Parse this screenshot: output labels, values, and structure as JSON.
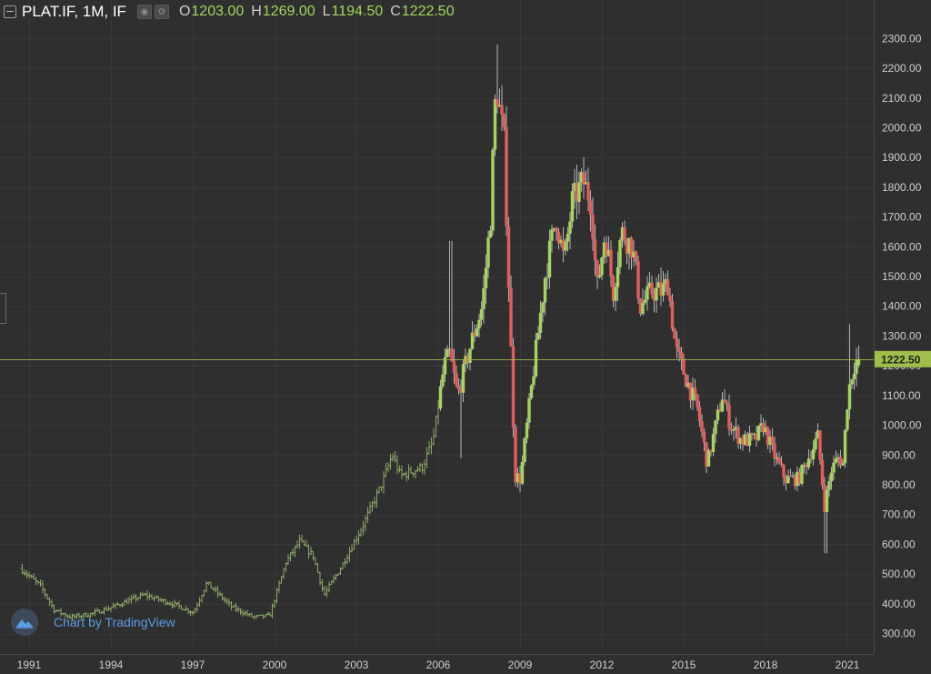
{
  "legend": {
    "symbol": "PLAT.IF, 1M, IF",
    "open_key": "O",
    "open": "1203.00",
    "high_key": "H",
    "high": "1269.00",
    "low_key": "L",
    "low": "1194.50",
    "close_key": "C",
    "close": "1222.50"
  },
  "watermark": {
    "text": "Chart by TradingView"
  },
  "colors": {
    "background": "#2f2f2f",
    "up": "#a4d65e",
    "down": "#e35d5d",
    "wick": "#b5b5b5",
    "last_price_line": "#9fbf4a",
    "text": "#cfcfcf"
  },
  "chart_data": {
    "type": "candlestick",
    "title": "PLAT.IF, 1M, IF",
    "interval": "1M",
    "y_axis_side": "right",
    "ylim": [
      210,
      2350
    ],
    "y_ticks": [
      300,
      400,
      500,
      600,
      700,
      800,
      900,
      1000,
      1100,
      1200,
      1300,
      1400,
      1500,
      1600,
      1700,
      1800,
      1900,
      2000,
      2100,
      2200,
      2300
    ],
    "y_tick_labels": [
      "300.00",
      "400.00",
      "500.00",
      "600.00",
      "700.00",
      "800.00",
      "900.00",
      "1000.00",
      "1100.00",
      "1200.00",
      "1300.00",
      "1400.00",
      "1500.00",
      "1600.00",
      "1700.00",
      "1800.00",
      "1900.00",
      "2000.00",
      "2100.00",
      "2200.00",
      "2300.00"
    ],
    "x_range": [
      1990.75,
      2022.3
    ],
    "x_ticks": [
      1991,
      1994,
      1997,
      2000,
      2003,
      2006,
      2009,
      2012,
      2015,
      2018,
      2021
    ],
    "x_tick_labels": [
      "1991",
      "1994",
      "1997",
      "2000",
      "2003",
      "2006",
      "2009",
      "2012",
      "2015",
      "2018",
      "2021"
    ],
    "last_price": 1222.5,
    "last_price_label": "1222.50",
    "grid": true,
    "anchors": [
      [
        1990.75,
        520
      ],
      [
        1991.5,
        460
      ],
      [
        1992.0,
        380
      ],
      [
        1992.6,
        355
      ],
      [
        1993.3,
        365
      ],
      [
        1994.0,
        385
      ],
      [
        1995.3,
        430
      ],
      [
        1996.5,
        395
      ],
      [
        1997.1,
        370
      ],
      [
        1997.6,
        470
      ],
      [
        1998.5,
        390
      ],
      [
        1999.3,
        355
      ],
      [
        1999.9,
        360
      ],
      [
        2000.5,
        540
      ],
      [
        2001.0,
        610
      ],
      [
        2001.5,
        560
      ],
      [
        2001.9,
        430
      ],
      [
        2002.5,
        520
      ],
      [
        2003.3,
        660
      ],
      [
        2004.0,
        800
      ],
      [
        2004.4,
        900
      ],
      [
        2004.7,
        830
      ],
      [
        2005.5,
        860
      ],
      [
        2005.9,
        950
      ],
      [
        2006.3,
        1200
      ],
      [
        2006.5,
        1240
      ],
      [
        2006.8,
        1100
      ],
      [
        2007.3,
        1280
      ],
      [
        2007.7,
        1400
      ],
      [
        2008.0,
        1700
      ],
      [
        2008.2,
        2150
      ],
      [
        2008.5,
        1950
      ],
      [
        2008.9,
        830
      ],
      [
        2009.1,
        820
      ],
      [
        2009.6,
        1200
      ],
      [
        2010.0,
        1500
      ],
      [
        2010.4,
        1700
      ],
      [
        2010.7,
        1550
      ],
      [
        2011.0,
        1750
      ],
      [
        2011.4,
        1820
      ],
      [
        2011.7,
        1750
      ],
      [
        2011.9,
        1450
      ],
      [
        2012.2,
        1650
      ],
      [
        2012.5,
        1450
      ],
      [
        2012.8,
        1650
      ],
      [
        2013.2,
        1600
      ],
      [
        2013.5,
        1400
      ],
      [
        2013.9,
        1450
      ],
      [
        2014.3,
        1450
      ],
      [
        2014.5,
        1480
      ],
      [
        2014.8,
        1250
      ],
      [
        2015.2,
        1150
      ],
      [
        2015.6,
        1050
      ],
      [
        2015.95,
        870
      ],
      [
        2016.5,
        1100
      ],
      [
        2016.8,
        1000
      ],
      [
        2017.2,
        950
      ],
      [
        2017.7,
        950
      ],
      [
        2018.0,
        1000
      ],
      [
        2018.4,
        900
      ],
      [
        2018.8,
        820
      ],
      [
        2019.3,
        820
      ],
      [
        2019.7,
        900
      ],
      [
        2020.0,
        960
      ],
      [
        2020.25,
        730
      ],
      [
        2020.5,
        850
      ],
      [
        2020.8,
        900
      ],
      [
        2020.9,
        850
      ],
      [
        2021.1,
        1100
      ],
      [
        2021.3,
        1200
      ],
      [
        2021.45,
        1222
      ]
    ],
    "detailed_from": 2006.0,
    "last_bar": {
      "open": 1203.0,
      "high": 1269.0,
      "low": 1194.5,
      "close": 1222.5
    }
  }
}
